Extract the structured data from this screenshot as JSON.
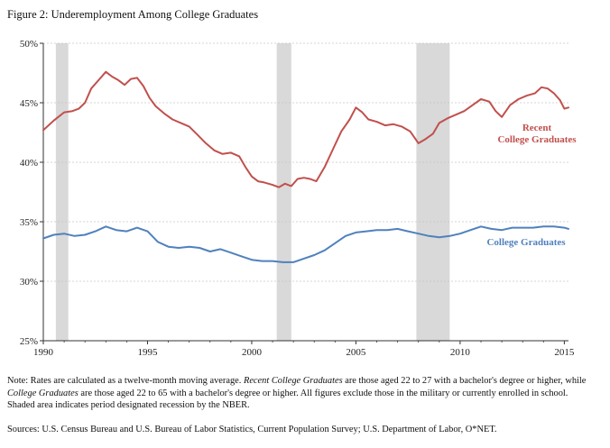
{
  "figure_title": "Figure 2: Underemployment Among College Graduates",
  "note": {
    "p1": "Note: Rates are calculated as a twelve-month moving average. ",
    "i1": "Recent College Graduates",
    "p2": " are those aged 22 to 27 with a bachelor's degree or higher, while ",
    "i2": "College Graduates",
    "p3": " are those aged 22 to 65 with a bachelor's degree or higher. All figures exclude those in the military or currently enrolled in school. Shaded area indicates period designated recession by the NBER."
  },
  "sources": "Sources: U.S. Census Bureau and U.S. Bureau of Labor Statistics, Current Population Survey; U.S. Department of Labor, O*NET.",
  "chart_data": {
    "type": "line",
    "title": "",
    "xlabel": "",
    "ylabel": "",
    "xlim": [
      1990,
      2015.2
    ],
    "ylim": [
      25,
      50
    ],
    "x_ticks": [
      1990,
      1995,
      2000,
      2005,
      2010,
      2015
    ],
    "y_ticks": [
      25,
      30,
      35,
      40,
      45,
      50
    ],
    "y_tick_labels": [
      "25%",
      "30%",
      "35%",
      "40%",
      "45%",
      "50%"
    ],
    "grid": "horizontal dashed",
    "recessions": [
      [
        1990.6,
        1991.2
      ],
      [
        2001.2,
        2001.9
      ],
      [
        2007.9,
        2009.5
      ]
    ],
    "series": [
      {
        "name": "Recent College Graduates",
        "label_lines": [
          "Recent",
          "College Graduates"
        ],
        "color": "#c0504d",
        "x": [
          1990,
          1990.5,
          1991,
          1991.4,
          1991.7,
          1992,
          1992.3,
          1992.7,
          1993,
          1993.3,
          1993.6,
          1993.9,
          1994.2,
          1994.5,
          1994.8,
          1995.1,
          1995.4,
          1995.8,
          1996.2,
          1996.6,
          1997,
          1997.4,
          1997.8,
          1998.2,
          1998.6,
          1999,
          1999.4,
          1999.7,
          2000,
          2000.3,
          2000.6,
          2001,
          2001.3,
          2001.6,
          2001.9,
          2002.2,
          2002.5,
          2002.8,
          2003.1,
          2003.5,
          2003.9,
          2004.3,
          2004.7,
          2005,
          2005.3,
          2005.6,
          2006,
          2006.4,
          2006.8,
          2007.2,
          2007.6,
          2008,
          2008.3,
          2008.7,
          2009,
          2009.4,
          2009.8,
          2010.2,
          2010.6,
          2011,
          2011.4,
          2011.7,
          2012,
          2012.4,
          2012.8,
          2013.2,
          2013.6,
          2013.9,
          2014.2,
          2014.5,
          2014.8,
          2015,
          2015.2
        ],
        "values": [
          42.7,
          43.5,
          44.2,
          44.3,
          44.5,
          45.0,
          46.2,
          47.0,
          47.6,
          47.2,
          46.9,
          46.5,
          47.0,
          47.1,
          46.4,
          45.4,
          44.7,
          44.1,
          43.6,
          43.3,
          43.0,
          42.3,
          41.6,
          41.0,
          40.7,
          40.8,
          40.5,
          39.6,
          38.8,
          38.4,
          38.3,
          38.1,
          37.9,
          38.2,
          38.0,
          38.6,
          38.7,
          38.6,
          38.4,
          39.6,
          41.1,
          42.6,
          43.6,
          44.6,
          44.2,
          43.6,
          43.4,
          43.1,
          43.2,
          43.0,
          42.6,
          41.6,
          41.9,
          42.4,
          43.3,
          43.7,
          44.0,
          44.3,
          44.8,
          45.3,
          45.1,
          44.3,
          43.8,
          44.8,
          45.3,
          45.6,
          45.8,
          46.3,
          46.2,
          45.8,
          45.2,
          44.5,
          44.6
        ]
      },
      {
        "name": "College Graduates",
        "label_lines": [
          "College Graduates"
        ],
        "color": "#4f81bd",
        "x": [
          1990,
          1990.5,
          1991,
          1991.5,
          1992,
          1992.5,
          1993,
          1993.5,
          1994,
          1994.5,
          1995,
          1995.5,
          1996,
          1996.5,
          1997,
          1997.5,
          1998,
          1998.5,
          1999,
          1999.5,
          2000,
          2000.5,
          2001,
          2001.5,
          2002,
          2002.5,
          2003,
          2003.5,
          2004,
          2004.5,
          2005,
          2005.5,
          2006,
          2006.5,
          2007,
          2007.5,
          2008,
          2008.5,
          2009,
          2009.5,
          2010,
          2010.5,
          2011,
          2011.5,
          2012,
          2012.5,
          2013,
          2013.5,
          2014,
          2014.5,
          2015,
          2015.2
        ],
        "values": [
          33.6,
          33.9,
          34.0,
          33.8,
          33.9,
          34.2,
          34.6,
          34.3,
          34.2,
          34.5,
          34.2,
          33.3,
          32.9,
          32.8,
          32.9,
          32.8,
          32.5,
          32.7,
          32.4,
          32.1,
          31.8,
          31.7,
          31.7,
          31.6,
          31.6,
          31.9,
          32.2,
          32.6,
          33.2,
          33.8,
          34.1,
          34.2,
          34.3,
          34.3,
          34.4,
          34.2,
          34.0,
          33.8,
          33.7,
          33.8,
          34.0,
          34.3,
          34.6,
          34.4,
          34.3,
          34.5,
          34.5,
          34.5,
          34.6,
          34.6,
          34.5,
          34.4
        ]
      }
    ]
  }
}
